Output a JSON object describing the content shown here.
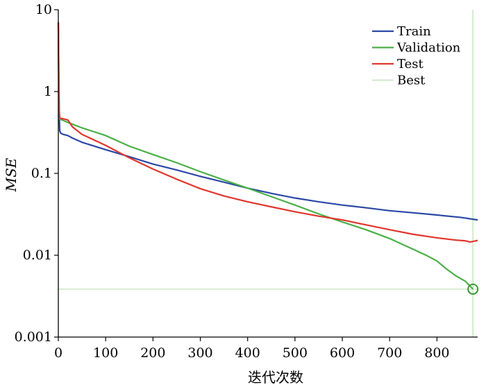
{
  "chart_data": {
    "type": "line",
    "xlabel": "迭代次数",
    "ylabel": "MSE",
    "xlim": [
      0,
      886
    ],
    "ylim": [
      0.001,
      10
    ],
    "yscale": "log",
    "grid": false,
    "legend_placement": "top-right",
    "x_ticks": [
      0,
      100,
      200,
      300,
      400,
      500,
      600,
      700,
      800
    ],
    "x_tick_labels": [
      "0",
      "100",
      "200",
      "300",
      "400",
      "500",
      "600",
      "700",
      "800"
    ],
    "y_ticks": [
      0.001,
      0.01,
      0.1,
      1,
      10
    ],
    "y_tick_labels": [
      "0.001",
      "0.01",
      "0.1",
      "1",
      "10"
    ],
    "series": [
      {
        "name": "Train",
        "color": "#2a47a6",
        "x": [
          0,
          1,
          2,
          3,
          5,
          10,
          20,
          30,
          50,
          100,
          150,
          200,
          250,
          300,
          350,
          400,
          450,
          500,
          550,
          600,
          650,
          700,
          750,
          800,
          850,
          886
        ],
        "y": [
          7.0,
          1.2,
          0.5,
          0.33,
          0.31,
          0.3,
          0.29,
          0.27,
          0.24,
          0.195,
          0.16,
          0.13,
          0.11,
          0.092,
          0.078,
          0.066,
          0.057,
          0.05,
          0.045,
          0.041,
          0.038,
          0.035,
          0.033,
          0.031,
          0.029,
          0.027
        ]
      },
      {
        "name": "Validation",
        "color": "#4aaf46",
        "x": [
          0,
          1,
          2,
          3,
          5,
          10,
          20,
          50,
          100,
          150,
          200,
          250,
          300,
          350,
          400,
          450,
          500,
          550,
          600,
          650,
          700,
          750,
          780,
          800,
          820,
          840,
          860,
          870,
          876
        ],
        "y": [
          7.0,
          1.5,
          0.6,
          0.46,
          0.455,
          0.445,
          0.42,
          0.36,
          0.29,
          0.215,
          0.17,
          0.135,
          0.105,
          0.083,
          0.066,
          0.052,
          0.041,
          0.032,
          0.0255,
          0.0205,
          0.016,
          0.0118,
          0.0098,
          0.0085,
          0.0068,
          0.0056,
          0.0048,
          0.0042,
          0.00385
        ]
      },
      {
        "name": "Test",
        "color": "#e0362c",
        "x": [
          0,
          1,
          2,
          3,
          5,
          10,
          20,
          30,
          50,
          100,
          150,
          200,
          250,
          300,
          350,
          400,
          450,
          500,
          550,
          600,
          650,
          700,
          750,
          800,
          840,
          860,
          870,
          880,
          886
        ],
        "y": [
          7.0,
          1.4,
          0.55,
          0.48,
          0.47,
          0.465,
          0.45,
          0.37,
          0.3,
          0.22,
          0.155,
          0.113,
          0.085,
          0.065,
          0.053,
          0.045,
          0.039,
          0.034,
          0.03,
          0.027,
          0.0235,
          0.0205,
          0.018,
          0.0163,
          0.0153,
          0.015,
          0.0145,
          0.0149,
          0.0152
        ]
      }
    ],
    "best": {
      "name": "Best",
      "color": "#b8e0b0",
      "epoch": 876,
      "value": 0.00385,
      "marker_color": "#3a9a3a"
    }
  }
}
